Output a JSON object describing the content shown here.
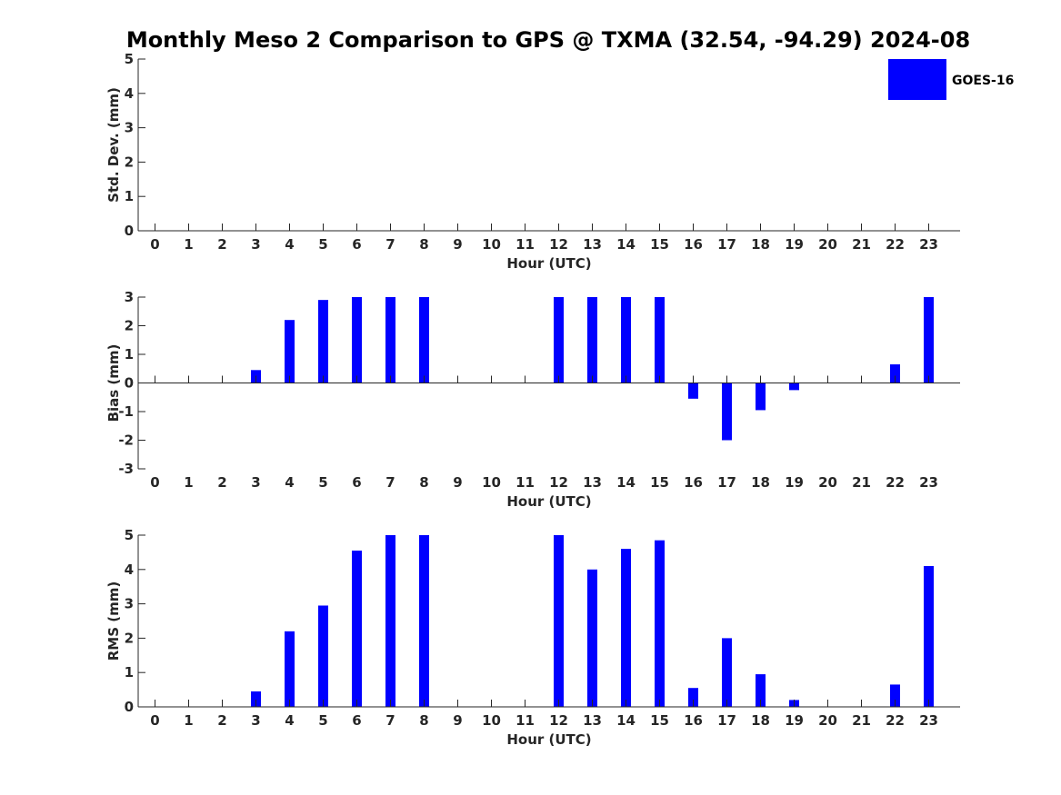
{
  "title": "Monthly Meso 2 Comparison to GPS @ TXMA (32.54, -94.29) 2024-08",
  "colors": {
    "bar": "#0000ff",
    "axis": "#262626",
    "background": "#ffffff"
  },
  "legend": {
    "label": "GOES-16",
    "placement": "top-right"
  },
  "chart_data": [
    {
      "type": "bar",
      "title": "",
      "xlabel": "Hour (UTC)",
      "ylabel": "Std. Dev. (mm)",
      "categories": [
        "0",
        "1",
        "2",
        "3",
        "4",
        "5",
        "6",
        "7",
        "8",
        "9",
        "10",
        "11",
        "12",
        "13",
        "14",
        "15",
        "16",
        "17",
        "18",
        "19",
        "20",
        "21",
        "22",
        "23"
      ],
      "ylim": [
        0,
        5
      ],
      "yticks": [
        "0",
        "1",
        "2",
        "3",
        "4",
        "5"
      ],
      "grid": false,
      "series": [
        {
          "name": "GOES-16",
          "values": [
            null,
            null,
            null,
            null,
            null,
            null,
            null,
            null,
            null,
            null,
            null,
            null,
            null,
            null,
            null,
            null,
            null,
            null,
            null,
            null,
            null,
            null,
            null,
            null
          ]
        }
      ]
    },
    {
      "type": "bar",
      "title": "",
      "xlabel": "Hour (UTC)",
      "ylabel": "Bias (mm)",
      "categories": [
        "0",
        "1",
        "2",
        "3",
        "4",
        "5",
        "6",
        "7",
        "8",
        "9",
        "10",
        "11",
        "12",
        "13",
        "14",
        "15",
        "16",
        "17",
        "18",
        "19",
        "20",
        "21",
        "22",
        "23"
      ],
      "ylim": [
        -3,
        3
      ],
      "yticks": [
        "-3",
        "-2",
        "-1",
        "0",
        "1",
        "2",
        "3"
      ],
      "grid": false,
      "series": [
        {
          "name": "GOES-16",
          "values": [
            null,
            null,
            null,
            0.45,
            2.2,
            2.9,
            3.0,
            3.0,
            3.0,
            null,
            null,
            null,
            3.0,
            3.0,
            3.0,
            3.0,
            -0.55,
            -2.0,
            -0.95,
            -0.25,
            null,
            null,
            0.65,
            3.0
          ]
        }
      ]
    },
    {
      "type": "bar",
      "title": "",
      "xlabel": "Hour (UTC)",
      "ylabel": "RMS (mm)",
      "categories": [
        "0",
        "1",
        "2",
        "3",
        "4",
        "5",
        "6",
        "7",
        "8",
        "9",
        "10",
        "11",
        "12",
        "13",
        "14",
        "15",
        "16",
        "17",
        "18",
        "19",
        "20",
        "21",
        "22",
        "23"
      ],
      "ylim": [
        0,
        5
      ],
      "yticks": [
        "0",
        "1",
        "2",
        "3",
        "4",
        "5"
      ],
      "grid": false,
      "series": [
        {
          "name": "GOES-16",
          "values": [
            null,
            null,
            null,
            0.45,
            2.2,
            2.95,
            4.55,
            5.0,
            5.0,
            null,
            null,
            null,
            5.0,
            4.0,
            4.6,
            4.85,
            0.55,
            2.0,
            0.95,
            0.2,
            null,
            null,
            0.65,
            4.1
          ]
        }
      ]
    }
  ]
}
